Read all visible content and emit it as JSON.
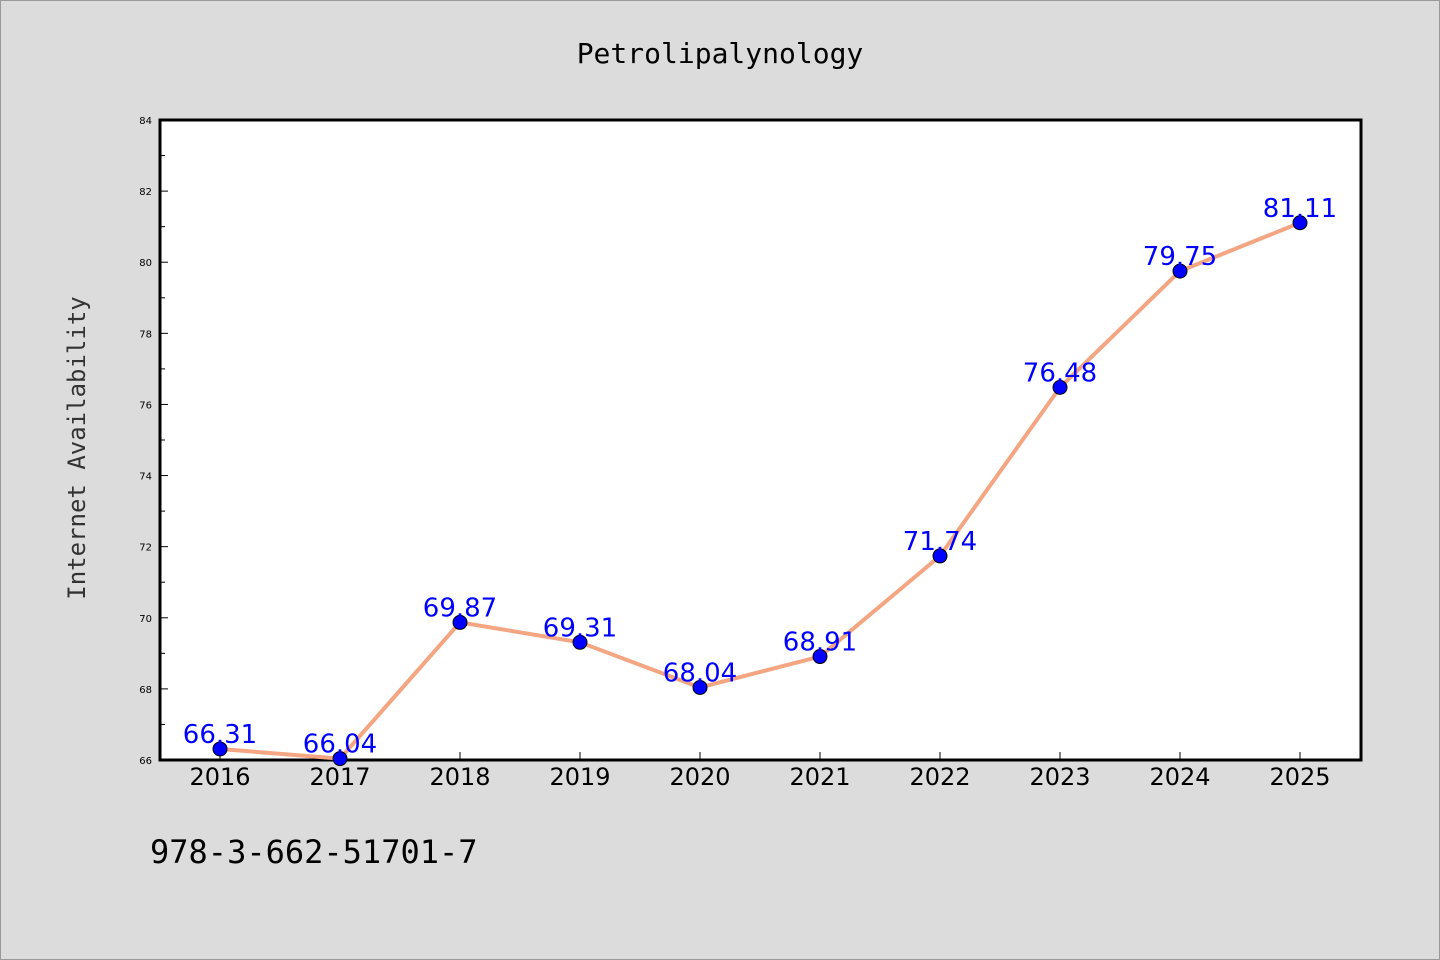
{
  "chart_data": {
    "type": "line",
    "title": "Petrolipalynology",
    "xlabel": "",
    "ylabel": "Internet Availability",
    "categories": [
      "2016",
      "2017",
      "2018",
      "2019",
      "2020",
      "2021",
      "2022",
      "2023",
      "2024",
      "2025"
    ],
    "values": [
      66.31,
      66.04,
      69.87,
      69.31,
      68.04,
      68.91,
      71.74,
      76.48,
      79.75,
      81.11
    ],
    "data_labels": [
      "66.31",
      "66.04",
      "69.87",
      "69.31",
      "68.04",
      "68.91",
      "71.74",
      "76.48",
      "79.75",
      "81.11"
    ],
    "yticks": [
      "66",
      "68",
      "70",
      "72",
      "74",
      "76",
      "78",
      "80",
      "82",
      "84"
    ],
    "ylim": [
      66,
      84
    ],
    "grid": false,
    "legend": "none",
    "line_color": "#f4a582",
    "marker_color": "#0000ff",
    "label_color": "#0000ff"
  },
  "footer": {
    "code": "978-3-662-51701-7"
  }
}
